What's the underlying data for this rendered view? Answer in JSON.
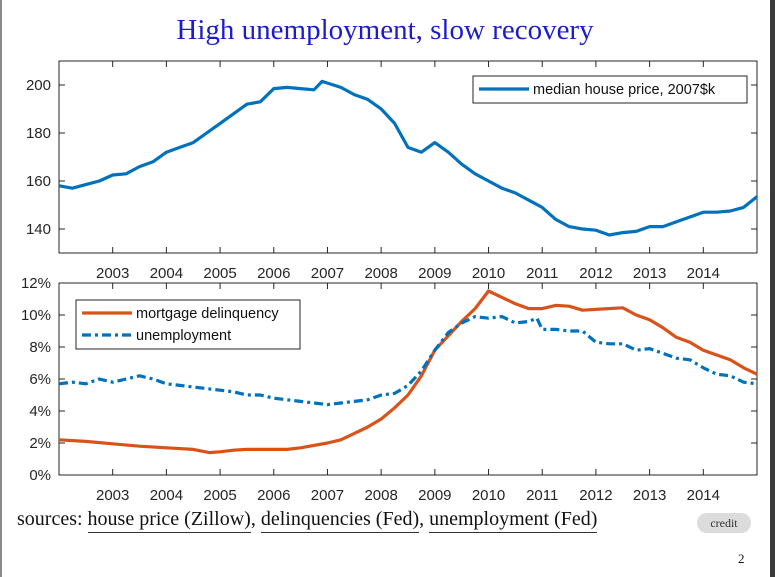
{
  "slide": {
    "title": "High unemployment, slow recovery",
    "sources_prefix": "sources:",
    "sources": [
      "house price (Zillow)",
      "delinquencies (Fed)",
      "unemployment (Fed)"
    ],
    "credit_label": "credit",
    "page_number": "2"
  },
  "chart_data": [
    {
      "type": "line",
      "xlim": [
        2002,
        2015
      ],
      "ylim": [
        130,
        210
      ],
      "xticks": [
        "2003",
        "2004",
        "2005",
        "2006",
        "2007",
        "2008",
        "2009",
        "2010",
        "2011",
        "2012",
        "2013",
        "2014"
      ],
      "yticks": [
        "140",
        "160",
        "180",
        "200"
      ],
      "legend_position": "top-right",
      "grid": false,
      "series": [
        {
          "name": "median house price, 2007$k",
          "color": "#0072bd",
          "style": "solid",
          "x": [
            2002,
            2002.25,
            2002.5,
            2002.75,
            2003,
            2003.25,
            2003.5,
            2003.75,
            2004,
            2004.25,
            2004.5,
            2004.75,
            2005,
            2005.25,
            2005.5,
            2005.75,
            2006,
            2006.25,
            2006.5,
            2006.75,
            2006.9,
            2007.25,
            2007.5,
            2007.75,
            2008,
            2008.25,
            2008.5,
            2008.75,
            2009,
            2009.25,
            2009.5,
            2009.75,
            2010,
            2010.25,
            2010.5,
            2010.75,
            2011,
            2011.25,
            2011.5,
            2011.75,
            2012,
            2012.25,
            2012.5,
            2012.75,
            2013,
            2013.25,
            2013.5,
            2013.75,
            2014,
            2014.25,
            2014.5,
            2014.75,
            2015
          ],
          "y": [
            158,
            157,
            158.5,
            160,
            162.5,
            163,
            166,
            168,
            172,
            174,
            176,
            180,
            184,
            188,
            192,
            193,
            198.5,
            199,
            198.5,
            198,
            201.5,
            199,
            196,
            194,
            190,
            184,
            174,
            172,
            176,
            172,
            167,
            163,
            160,
            157,
            155,
            152,
            149,
            144,
            141,
            140,
            139.5,
            137.5,
            138.5,
            139,
            141,
            141,
            143,
            145,
            147,
            147,
            147.5,
            149,
            153.5
          ]
        }
      ]
    },
    {
      "type": "line",
      "xlim": [
        2002,
        2015
      ],
      "ylim": [
        0,
        12
      ],
      "xticks": [
        "2003",
        "2004",
        "2005",
        "2006",
        "2007",
        "2008",
        "2009",
        "2010",
        "2011",
        "2012",
        "2013",
        "2014"
      ],
      "yticks": [
        "0%",
        "2%",
        "4%",
        "6%",
        "8%",
        "10%",
        "12%"
      ],
      "legend_position": "top-left",
      "grid": false,
      "series": [
        {
          "name": "mortgage delinquency",
          "color": "#d95319",
          "style": "solid",
          "x": [
            2002,
            2002.5,
            2003,
            2003.5,
            2004,
            2004.5,
            2004.8,
            2005,
            2005.25,
            2005.5,
            2006,
            2006.25,
            2006.5,
            2007,
            2007.25,
            2007.5,
            2007.75,
            2008,
            2008.25,
            2008.5,
            2008.75,
            2009,
            2009.25,
            2009.5,
            2009.75,
            2010,
            2010.5,
            2010.75,
            2011,
            2011.25,
            2011.5,
            2011.75,
            2012,
            2012.5,
            2012.75,
            2013,
            2013.25,
            2013.5,
            2013.75,
            2014,
            2014.25,
            2014.5,
            2014.75,
            2015
          ],
          "y": [
            2.2,
            2.1,
            1.95,
            1.8,
            1.7,
            1.6,
            1.4,
            1.45,
            1.55,
            1.6,
            1.6,
            1.6,
            1.7,
            2.0,
            2.2,
            2.6,
            3.0,
            3.5,
            4.2,
            5.0,
            6.2,
            7.8,
            8.7,
            9.6,
            10.4,
            11.5,
            10.7,
            10.4,
            10.4,
            10.6,
            10.55,
            10.3,
            10.35,
            10.45,
            10.0,
            9.7,
            9.2,
            8.6,
            8.3,
            7.8,
            7.5,
            7.2,
            6.7,
            6.3
          ]
        },
        {
          "name": "unemployment",
          "color": "#0072bd",
          "style": "dash-dot",
          "x": [
            2002,
            2002.25,
            2002.5,
            2002.75,
            2003,
            2003.25,
            2003.5,
            2003.75,
            2004,
            2004.25,
            2004.5,
            2004.75,
            2005,
            2005.25,
            2005.5,
            2005.75,
            2006,
            2006.25,
            2006.5,
            2006.75,
            2007,
            2007.25,
            2007.5,
            2007.75,
            2008,
            2008.25,
            2008.5,
            2008.75,
            2009,
            2009.25,
            2009.5,
            2009.75,
            2010,
            2010.25,
            2010.5,
            2010.75,
            2010.9,
            2011,
            2011.25,
            2011.5,
            2011.75,
            2012,
            2012.25,
            2012.5,
            2012.75,
            2013,
            2013.25,
            2013.5,
            2013.75,
            2014,
            2014.25,
            2014.5,
            2014.75,
            2015
          ],
          "y": [
            5.7,
            5.8,
            5.7,
            6.0,
            5.8,
            6.0,
            6.2,
            6.0,
            5.7,
            5.6,
            5.5,
            5.4,
            5.3,
            5.2,
            5.0,
            5.0,
            4.8,
            4.7,
            4.6,
            4.5,
            4.4,
            4.5,
            4.6,
            4.7,
            5.0,
            5.1,
            5.6,
            6.5,
            7.8,
            8.9,
            9.5,
            9.9,
            9.8,
            9.9,
            9.5,
            9.6,
            9.8,
            9.1,
            9.1,
            9.0,
            9.0,
            8.3,
            8.2,
            8.2,
            7.8,
            7.9,
            7.6,
            7.3,
            7.2,
            6.7,
            6.3,
            6.2,
            5.8,
            5.7
          ]
        }
      ]
    }
  ]
}
